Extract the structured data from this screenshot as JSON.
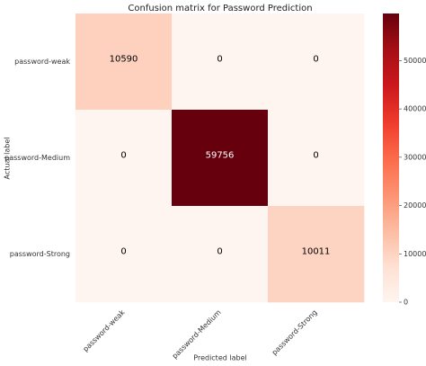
{
  "chart_data": {
    "type": "heatmap",
    "title": "Confusion matrix for Password Prediction",
    "x_label": "Predicted label",
    "y_label": "Actual label",
    "x_categories": [
      "password-weak",
      "password-Medium",
      "password-Strong"
    ],
    "y_categories": [
      "password-weak",
      "password-Medium",
      "password-Strong"
    ],
    "values": [
      [
        10590,
        0,
        0
      ],
      [
        0,
        59756,
        0
      ],
      [
        0,
        0,
        10011
      ]
    ],
    "colormap": "Reds",
    "zlim": [
      0,
      59756
    ],
    "zticks": [
      0,
      10000,
      20000,
      30000,
      40000,
      50000
    ]
  }
}
